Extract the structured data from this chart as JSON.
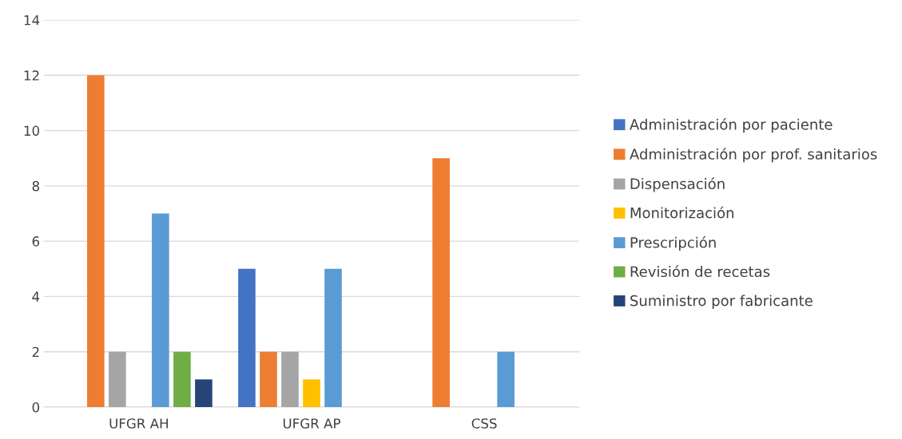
{
  "chart_data": {
    "type": "bar",
    "categories": [
      "UFGR AH",
      "UFGR AP",
      "CSS"
    ],
    "series": [
      {
        "name": "Administración por paciente",
        "color": "#4472c4",
        "values": [
          0,
          5,
          0
        ]
      },
      {
        "name": "Administración por prof. sanitarios",
        "color": "#ed7d31",
        "values": [
          12,
          2,
          9
        ]
      },
      {
        "name": "Dispensación",
        "color": "#a5a5a5",
        "values": [
          2,
          2,
          0
        ]
      },
      {
        "name": "Monitorización",
        "color": "#ffc000",
        "values": [
          0,
          1,
          0
        ]
      },
      {
        "name": "Prescripción",
        "color": "#5b9bd5",
        "values": [
          7,
          5,
          2
        ]
      },
      {
        "name": "Revisión de recetas",
        "color": "#70ad47",
        "values": [
          2,
          0,
          0
        ]
      },
      {
        "name": "Suministro por fabricante",
        "color": "#264478",
        "values": [
          1,
          0,
          0
        ]
      }
    ],
    "ylim": [
      0,
      14
    ],
    "yticks": [
      0,
      2,
      4,
      6,
      8,
      10,
      12,
      14
    ],
    "grid": "y",
    "legend": "right"
  }
}
